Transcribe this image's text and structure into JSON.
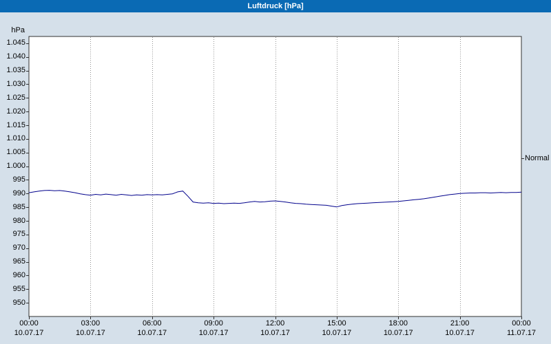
{
  "window": {
    "title": "Luftdruck [hPa]"
  },
  "normal_label": "Normal",
  "colors": {
    "titlebar": "#0a6ab4",
    "background": "#d5e0ea",
    "plot_bg": "#ffffff",
    "axis": "#303030",
    "grid": "#909090",
    "line": "#00008b",
    "text": "#000000"
  },
  "chart_data": {
    "type": "line",
    "title": "Luftdruck [hPa]",
    "xlabel": "",
    "ylabel": "hPa",
    "ylim": [
      945,
      1047.5
    ],
    "xlim": [
      0,
      24
    ],
    "grid": "vertical-dotted",
    "legend_position": "none",
    "normal_value": 1003,
    "normal_label": "Normal",
    "y_ticks": [
      {
        "value": 1045,
        "label": "1.045"
      },
      {
        "value": 1040,
        "label": "1.040"
      },
      {
        "value": 1035,
        "label": "1.035"
      },
      {
        "value": 1030,
        "label": "1.030"
      },
      {
        "value": 1025,
        "label": "1.025"
      },
      {
        "value": 1020,
        "label": "1.020"
      },
      {
        "value": 1015,
        "label": "1.015"
      },
      {
        "value": 1010,
        "label": "1.010"
      },
      {
        "value": 1005,
        "label": "1.005"
      },
      {
        "value": 1000,
        "label": "1.000"
      },
      {
        "value": 995,
        "label": "995"
      },
      {
        "value": 990,
        "label": "990"
      },
      {
        "value": 985,
        "label": "985"
      },
      {
        "value": 980,
        "label": "980"
      },
      {
        "value": 975,
        "label": "975"
      },
      {
        "value": 970,
        "label": "970"
      },
      {
        "value": 965,
        "label": "965"
      },
      {
        "value": 960,
        "label": "960"
      },
      {
        "value": 955,
        "label": "955"
      },
      {
        "value": 950,
        "label": "950"
      }
    ],
    "x_ticks": [
      {
        "hour": 0,
        "time": "00:00",
        "date": "10.07.17"
      },
      {
        "hour": 3,
        "time": "03:00",
        "date": "10.07.17"
      },
      {
        "hour": 6,
        "time": "06:00",
        "date": "10.07.17"
      },
      {
        "hour": 9,
        "time": "09:00",
        "date": "10.07.17"
      },
      {
        "hour": 12,
        "time": "12:00",
        "date": "10.07.17"
      },
      {
        "hour": 15,
        "time": "15:00",
        "date": "10.07.17"
      },
      {
        "hour": 18,
        "time": "18:00",
        "date": "10.07.17"
      },
      {
        "hour": 21,
        "time": "21:00",
        "date": "10.07.17"
      },
      {
        "hour": 24,
        "time": "00:00",
        "date": "11.07.17"
      }
    ],
    "x_start": 0,
    "x_step_hours": 0.25,
    "series": [
      {
        "name": "Luftdruck",
        "values": [
          990.3,
          990.6,
          990.9,
          991.1,
          991.2,
          991.0,
          991.1,
          990.9,
          990.6,
          990.3,
          989.9,
          989.6,
          989.4,
          989.7,
          989.5,
          989.8,
          989.6,
          989.4,
          989.7,
          989.5,
          989.3,
          989.5,
          989.4,
          989.6,
          989.5,
          989.6,
          989.5,
          989.7,
          989.9,
          990.6,
          990.9,
          989.0,
          986.9,
          986.6,
          986.5,
          986.6,
          986.4,
          986.5,
          986.3,
          986.4,
          986.5,
          986.4,
          986.6,
          986.9,
          987.1,
          986.9,
          987.0,
          987.2,
          987.3,
          987.1,
          986.9,
          986.6,
          986.4,
          986.3,
          986.1,
          986.0,
          985.9,
          985.8,
          985.7,
          985.4,
          985.1,
          985.6,
          985.9,
          986.1,
          986.3,
          986.4,
          986.5,
          986.6,
          986.7,
          986.8,
          986.9,
          987.0,
          987.1,
          987.3,
          987.5,
          987.7,
          987.9,
          988.1,
          988.4,
          988.7,
          989.0,
          989.3,
          989.6,
          989.8,
          990.0,
          990.1,
          990.2,
          990.2,
          990.3,
          990.3,
          990.2,
          990.3,
          990.4,
          990.3,
          990.4,
          990.4,
          990.5
        ]
      }
    ]
  }
}
